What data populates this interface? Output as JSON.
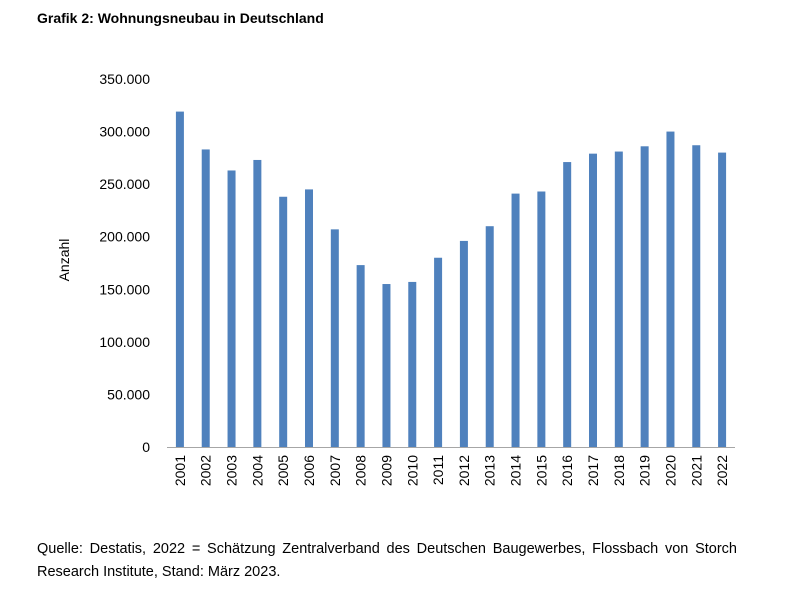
{
  "title": "Grafik 2: Wohnungsneubau in Deutschland",
  "source": "Quelle: Destatis, 2022 = Schätzung Zentralverband des Deutschen Baugewerbes, Flossbach von Storch Research Institute, Stand: März 2023.",
  "chart_data": {
    "type": "bar",
    "title": "Grafik 2: Wohnungsneubau in Deutschland",
    "xlabel": "",
    "ylabel": "Anzahl",
    "ylim": [
      0,
      350000
    ],
    "yticks": [
      0,
      50000,
      100000,
      150000,
      200000,
      250000,
      300000,
      350000
    ],
    "ytick_labels": [
      "0",
      "50.000",
      "100.000",
      "150.000",
      "200.000",
      "250.000",
      "300.000",
      "350.000"
    ],
    "grid": false,
    "legend": "none",
    "bar_color": "#4f81bd",
    "categories": [
      "2001",
      "2002",
      "2003",
      "2004",
      "2005",
      "2006",
      "2007",
      "2008",
      "2009",
      "2010",
      "2011",
      "2012",
      "2013",
      "2014",
      "2015",
      "2016",
      "2017",
      "2018",
      "2019",
      "2020",
      "2021",
      "2022"
    ],
    "values": [
      319000,
      283000,
      263000,
      273000,
      238000,
      245000,
      207000,
      173000,
      155000,
      157000,
      180000,
      196000,
      210000,
      241000,
      243000,
      271000,
      279000,
      281000,
      286000,
      300000,
      287000,
      280000
    ]
  }
}
